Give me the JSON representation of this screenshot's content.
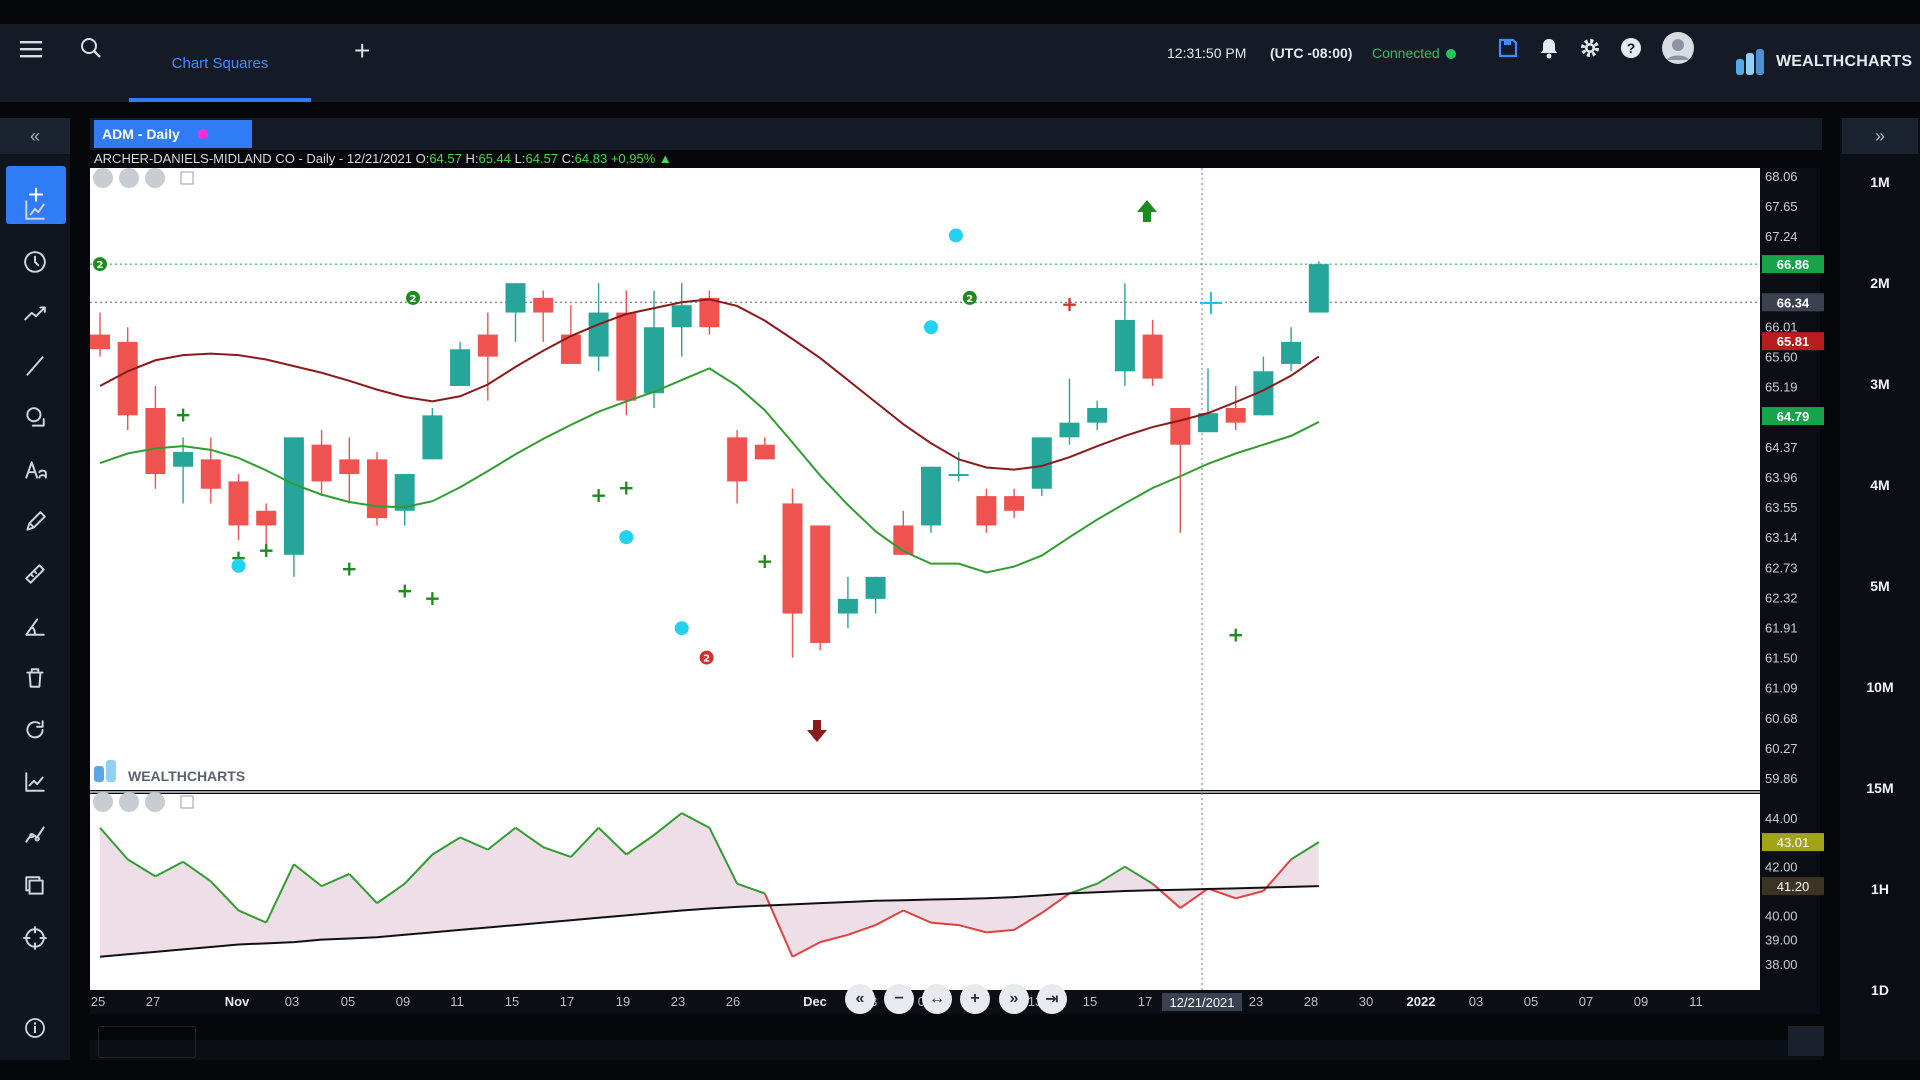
{
  "topbar": {
    "tab_label": "Chart Squares",
    "time": "12:31:50 PM",
    "timezone": "(UTC -08:00)",
    "connection": "Connected",
    "connection_color": "#22c55e",
    "brand": "WEALTHCHARTS"
  },
  "chart": {
    "tab_label": "ADM - Daily",
    "symbol_name": "ARCHER-DANIELS-MIDLAND CO",
    "interval": "Daily",
    "date": "12/21/2021",
    "open": "64.57",
    "high": "65.44",
    "low": "64.57",
    "close": "64.83",
    "change": "+0.95%",
    "crosshair_date": "12/21/2021",
    "watermark": "WEALTHCHARTS"
  },
  "timeframes": [
    "1M",
    "2M",
    "3M",
    "4M",
    "5M",
    "10M",
    "15M",
    "1H",
    "1D"
  ],
  "left_tools": [
    "chart-type-icon",
    "clock-icon",
    "trend-icon",
    "line-icon",
    "shapes-icon",
    "text-icon",
    "pencil-icon",
    "ruler-icon",
    "angle-icon",
    "trash-icon",
    "refresh-icon",
    "indicator-icon",
    "node-chart-icon",
    "layers-icon",
    "crosshair-icon"
  ],
  "chart_data": {
    "type": "candlestick",
    "price_axis_ticks": [
      "68.06",
      "67.65",
      "67.24",
      "66.01",
      "65.60",
      "65.19",
      "64.37",
      "63.96",
      "63.55",
      "63.14",
      "62.73",
      "62.32",
      "61.91",
      "61.50",
      "61.09",
      "60.68",
      "60.27",
      "59.86"
    ],
    "price_labels": [
      {
        "value": "66.86",
        "color": "#16a34a"
      },
      {
        "value": "66.34",
        "color": "#3b4150"
      },
      {
        "value": "65.81",
        "color": "#b91c1c"
      },
      {
        "value": "64.79",
        "color": "#16a34a"
      }
    ],
    "indicator_axis_ticks": [
      "44.00",
      "42.00",
      "40.00",
      "39.00",
      "38.00"
    ],
    "indicator_labels": [
      {
        "value": "43.01",
        "color": "#a3a31a"
      },
      {
        "value": "41.20",
        "color": "#3b3424"
      }
    ],
    "x_tick_labels": [
      "25",
      "27",
      "Nov",
      "03",
      "05",
      "09",
      "11",
      "15",
      "17",
      "19",
      "23",
      "26",
      "Dec",
      "03",
      "07",
      "09",
      "13",
      "15",
      "17",
      "23",
      "28",
      "30",
      "2022",
      "03",
      "05",
      "07",
      "09",
      "11"
    ],
    "candles": [
      {
        "o": 65.9,
        "h": 66.2,
        "l": 65.6,
        "c": 65.7
      },
      {
        "o": 65.8,
        "h": 66.0,
        "l": 64.6,
        "c": 64.8
      },
      {
        "o": 64.9,
        "h": 65.2,
        "l": 63.8,
        "c": 64.0
      },
      {
        "o": 64.1,
        "h": 64.5,
        "l": 63.6,
        "c": 64.3
      },
      {
        "o": 64.2,
        "h": 64.5,
        "l": 63.6,
        "c": 63.8
      },
      {
        "o": 63.9,
        "h": 64.0,
        "l": 63.1,
        "c": 63.3
      },
      {
        "o": 63.5,
        "h": 63.6,
        "l": 63.0,
        "c": 63.3
      },
      {
        "o": 62.9,
        "h": 64.5,
        "l": 62.6,
        "c": 64.5
      },
      {
        "o": 64.4,
        "h": 64.6,
        "l": 63.7,
        "c": 63.9
      },
      {
        "o": 64.2,
        "h": 64.5,
        "l": 63.6,
        "c": 64.0
      },
      {
        "o": 64.2,
        "h": 64.3,
        "l": 63.3,
        "c": 63.4
      },
      {
        "o": 63.5,
        "h": 64.0,
        "l": 63.3,
        "c": 64.0
      },
      {
        "o": 64.2,
        "h": 64.9,
        "l": 64.2,
        "c": 64.8
      },
      {
        "o": 65.2,
        "h": 65.8,
        "l": 65.2,
        "c": 65.7
      },
      {
        "o": 65.9,
        "h": 66.2,
        "l": 65.0,
        "c": 65.6
      },
      {
        "o": 66.2,
        "h": 66.6,
        "l": 65.8,
        "c": 66.6
      },
      {
        "o": 66.4,
        "h": 66.5,
        "l": 65.8,
        "c": 66.2
      },
      {
        "o": 65.9,
        "h": 66.3,
        "l": 65.5,
        "c": 65.5
      },
      {
        "o": 65.6,
        "h": 66.6,
        "l": 65.4,
        "c": 66.2
      },
      {
        "o": 66.2,
        "h": 66.5,
        "l": 64.8,
        "c": 65.0
      },
      {
        "o": 65.1,
        "h": 66.5,
        "l": 64.9,
        "c": 66.0
      },
      {
        "o": 66.0,
        "h": 66.6,
        "l": 65.6,
        "c": 66.3
      },
      {
        "o": 66.4,
        "h": 66.5,
        "l": 65.9,
        "c": 66.0
      },
      {
        "o": 64.5,
        "h": 64.6,
        "l": 63.6,
        "c": 63.9
      },
      {
        "o": 64.4,
        "h": 64.5,
        "l": 64.2,
        "c": 64.2
      },
      {
        "o": 63.6,
        "h": 63.8,
        "l": 61.5,
        "c": 62.1
      },
      {
        "o": 63.3,
        "h": 63.3,
        "l": 61.6,
        "c": 61.7
      },
      {
        "o": 62.1,
        "h": 62.6,
        "l": 61.9,
        "c": 62.3
      },
      {
        "o": 62.3,
        "h": 62.6,
        "l": 62.1,
        "c": 62.6
      },
      {
        "o": 63.3,
        "h": 63.5,
        "l": 62.9,
        "c": 62.9
      },
      {
        "o": 63.3,
        "h": 64.1,
        "l": 63.2,
        "c": 64.1
      },
      {
        "o": 64.0,
        "h": 64.3,
        "l": 63.9,
        "c": 64.0
      },
      {
        "o": 63.7,
        "h": 63.8,
        "l": 63.2,
        "c": 63.3
      },
      {
        "o": 63.7,
        "h": 63.8,
        "l": 63.4,
        "c": 63.5
      },
      {
        "o": 63.8,
        "h": 64.5,
        "l": 63.7,
        "c": 64.5
      },
      {
        "o": 64.5,
        "h": 65.3,
        "l": 64.4,
        "c": 64.7
      },
      {
        "o": 64.7,
        "h": 65.0,
        "l": 64.6,
        "c": 64.9
      },
      {
        "o": 65.4,
        "h": 66.6,
        "l": 65.2,
        "c": 66.1
      },
      {
        "o": 65.9,
        "h": 66.1,
        "l": 65.2,
        "c": 65.3
      },
      {
        "o": 64.9,
        "h": 64.9,
        "l": 63.2,
        "c": 64.4
      },
      {
        "o": 64.57,
        "h": 65.44,
        "l": 64.57,
        "c": 64.83
      },
      {
        "o": 64.9,
        "h": 65.2,
        "l": 64.6,
        "c": 64.7
      },
      {
        "o": 64.8,
        "h": 65.6,
        "l": 64.8,
        "c": 65.4
      },
      {
        "o": 65.5,
        "h": 66.0,
        "l": 65.4,
        "c": 65.8
      },
      {
        "o": 66.2,
        "h": 66.9,
        "l": 66.2,
        "c": 66.86
      }
    ],
    "red_ma": [
      65.2,
      65.4,
      65.55,
      65.62,
      65.64,
      65.62,
      65.56,
      65.47,
      65.38,
      65.27,
      65.15,
      65.05,
      64.99,
      65.06,
      65.22,
      65.46,
      65.68,
      65.88,
      66.04,
      66.18,
      66.26,
      66.34,
      66.38,
      66.29,
      66.09,
      65.84,
      65.58,
      65.28,
      64.98,
      64.68,
      64.42,
      64.2,
      64.09,
      64.06,
      64.11,
      64.23,
      64.38,
      64.52,
      64.64,
      64.73,
      64.83,
      64.98,
      65.14,
      65.34,
      65.6
    ],
    "green_ma": [
      64.15,
      64.28,
      64.35,
      64.38,
      64.33,
      64.22,
      64.05,
      63.86,
      63.72,
      63.62,
      63.56,
      63.55,
      63.63,
      63.82,
      64.04,
      64.27,
      64.48,
      64.67,
      64.85,
      64.99,
      65.12,
      65.28,
      65.44,
      65.2,
      64.87,
      64.43,
      63.98,
      63.58,
      63.22,
      62.95,
      62.78,
      62.78,
      62.66,
      62.74,
      62.89,
      63.14,
      63.38,
      63.6,
      63.81,
      63.97,
      64.14,
      64.28,
      64.4,
      64.52,
      64.71
    ],
    "indicator_line": [
      43.6,
      42.3,
      41.6,
      42.2,
      41.4,
      40.2,
      39.7,
      42.1,
      41.2,
      41.7,
      40.5,
      41.3,
      42.5,
      43.2,
      42.7,
      43.6,
      42.8,
      42.4,
      43.6,
      42.5,
      43.3,
      44.2,
      43.6,
      41.3,
      40.9,
      38.3,
      38.9,
      39.2,
      39.6,
      40.2,
      39.7,
      39.6,
      39.3,
      39.4,
      40.1,
      40.9,
      41.3,
      42.0,
      41.3,
      40.3,
      41.1,
      40.7,
      41.0,
      42.3,
      43.01
    ],
    "indicator_baseline": [
      38.3,
      38.4,
      38.5,
      38.6,
      38.7,
      38.8,
      38.85,
      38.9,
      39.0,
      39.05,
      39.1,
      39.2,
      39.3,
      39.4,
      39.5,
      39.6,
      39.7,
      39.8,
      39.9,
      40.0,
      40.1,
      40.2,
      40.28,
      40.35,
      40.4,
      40.45,
      40.5,
      40.55,
      40.6,
      40.62,
      40.65,
      40.67,
      40.7,
      40.75,
      40.82,
      40.9,
      40.95,
      41.0,
      41.03,
      41.05,
      41.08,
      41.11,
      41.14,
      41.17,
      41.2
    ]
  }
}
